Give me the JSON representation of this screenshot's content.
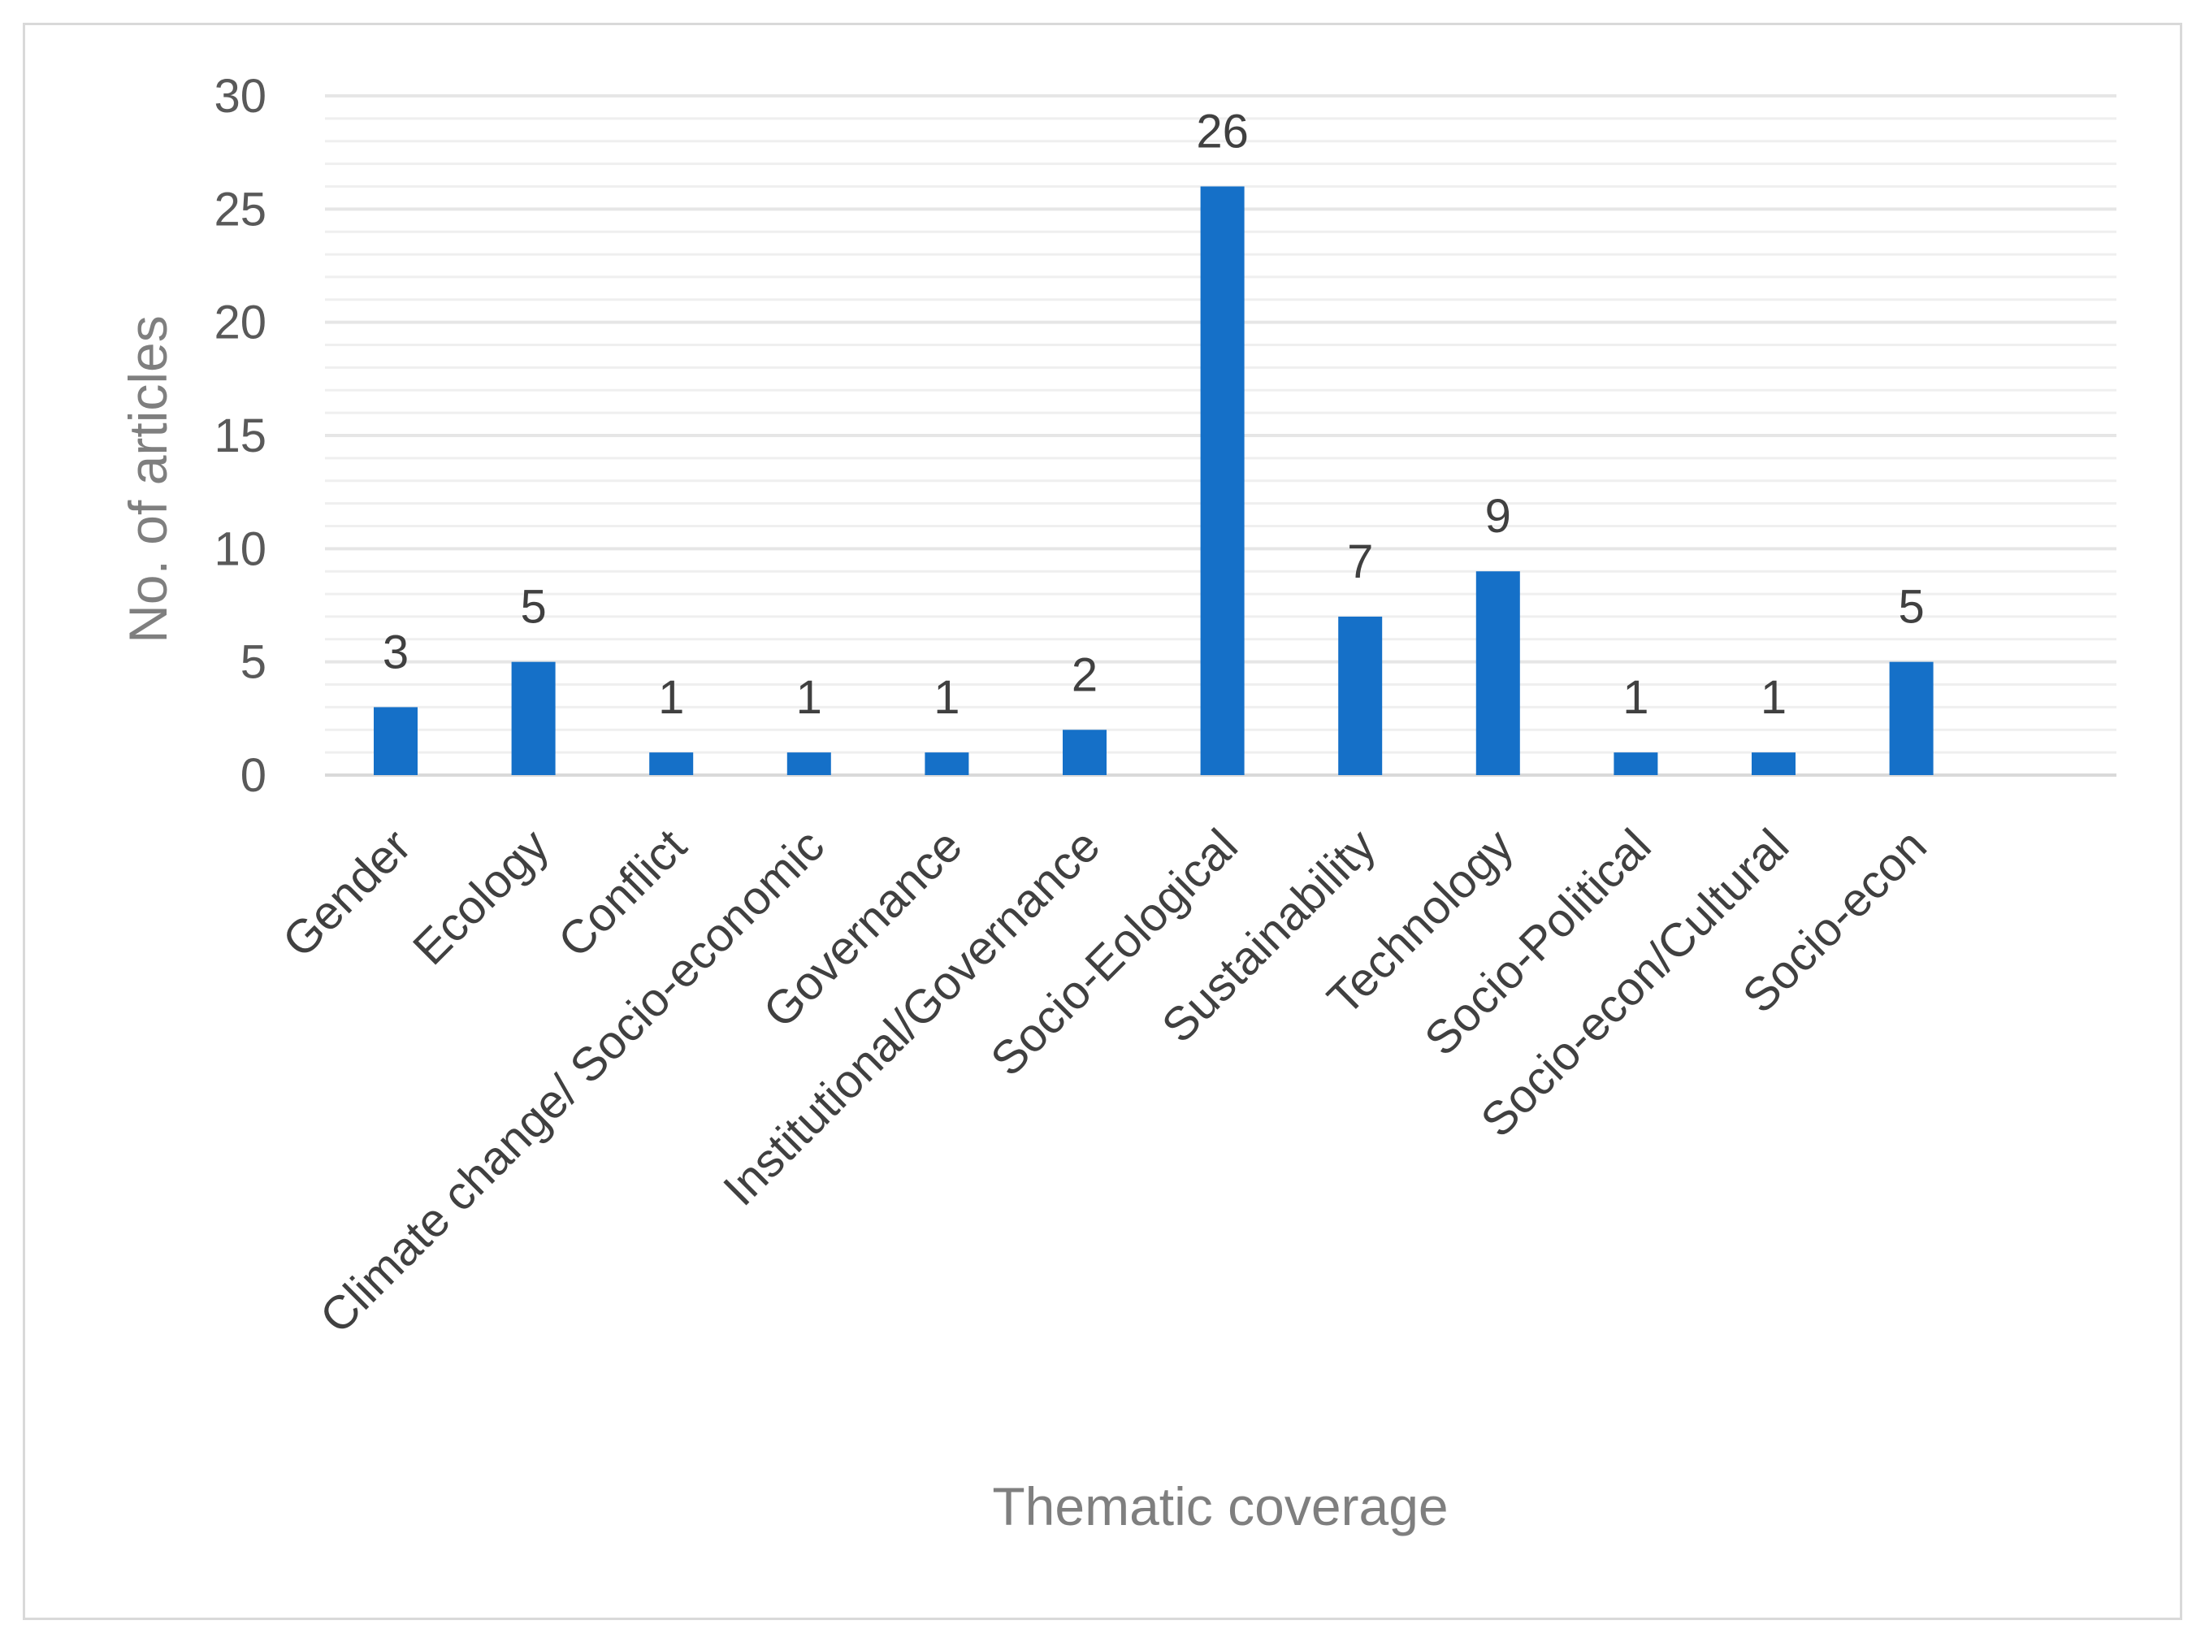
{
  "chart_data": {
    "type": "bar",
    "title": "",
    "xlabel": "Thematic coverage",
    "ylabel": "No. of articles",
    "ylim": [
      0,
      30
    ],
    "ytick_step": 5,
    "minor_grid_step": 1,
    "grid": true,
    "legend": "none",
    "bar_color": "#1570C8",
    "categories": [
      "Gender",
      "Ecology",
      "Conflict",
      "Climate change/ Socio-economic",
      "Governance",
      "Institutional/Governance",
      "Socio-Eological",
      "Sustainability",
      "Technology",
      "Socio-Political",
      "Socio-econ/Cultural",
      "Socio-econ"
    ],
    "values": [
      3,
      5,
      1,
      1,
      1,
      2,
      26,
      7,
      9,
      1,
      1,
      5
    ],
    "data_labels": [
      "3",
      "5",
      "1",
      "1",
      "1",
      "2",
      "26",
      "7",
      "9",
      "1",
      "1",
      "5"
    ],
    "yticks": [
      "0",
      "5",
      "10",
      "15",
      "20",
      "25",
      "30"
    ]
  }
}
